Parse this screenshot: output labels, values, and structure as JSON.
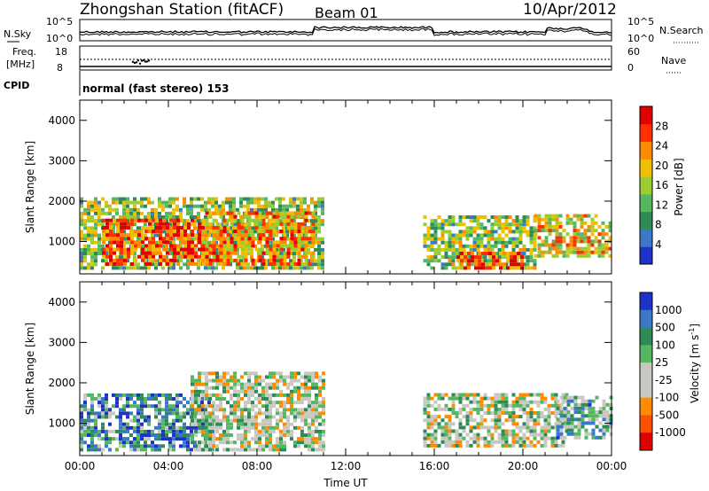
{
  "header": {
    "title": "Zhongshan Station (fitACF)",
    "beam": "Beam 01",
    "date": "10/Apr/2012"
  },
  "noise_panel": {
    "left_label": "N.Sky",
    "right_label": "N.Search",
    "left_ticks": [
      "10^5",
      "10^0"
    ],
    "right_ticks": [
      "10^5",
      "10^0"
    ]
  },
  "freq_panel": {
    "left_label_1": "Freq.",
    "left_label_2": "[MHz]",
    "left_ticks": [
      "18",
      "8"
    ],
    "right_label": "Nave",
    "right_ticks": [
      "60",
      "0"
    ]
  },
  "cpid": {
    "label": "CPID",
    "text": "normal (fast stereo) 153"
  },
  "colors": {
    "power": [
      "#1e32c8",
      "#3c78c8",
      "#2e8b57",
      "#55b860",
      "#9acd32",
      "#f0c000",
      "#ff8c00",
      "#ff3000",
      "#e00000"
    ],
    "velocity": [
      "#1e32c8",
      "#3c78c8",
      "#2e8b57",
      "#55b860",
      "#c8c8c0",
      "#c8c8c0",
      "#ff8c00",
      "#ff5000",
      "#e00000"
    ]
  },
  "chart_data": [
    {
      "type": "heatmap",
      "panel": "power",
      "ylabel": "Slant Range [km]",
      "ylim": [
        200,
        4500
      ],
      "yticks": [
        "1000",
        "2000",
        "3000",
        "4000"
      ],
      "xlim": [
        0,
        24
      ],
      "colorbar_label": "Power [dB]",
      "colorbar_ticks": [
        "4",
        "8",
        "12",
        "16",
        "20",
        "24",
        "28"
      ],
      "colorbar_range": [
        0,
        32
      ],
      "segments": [
        {
          "t0": 0.0,
          "t1": 11.0,
          "r0": 300,
          "r1": 2100,
          "level": 0.45
        },
        {
          "t0": 1.0,
          "t1": 5.5,
          "r0": 400,
          "r1": 1500,
          "level": 0.85
        },
        {
          "t0": 5.5,
          "t1": 10.5,
          "r0": 400,
          "r1": 1700,
          "level": 0.7
        },
        {
          "t0": 15.5,
          "t1": 20.5,
          "r0": 300,
          "r1": 1600,
          "level": 0.45
        },
        {
          "t0": 20.5,
          "t1": 24.0,
          "r0": 600,
          "r1": 1600,
          "level": 0.6
        },
        {
          "t0": 17.0,
          "t1": 20.0,
          "r0": 300,
          "r1": 700,
          "level": 0.8
        }
      ]
    },
    {
      "type": "heatmap",
      "panel": "velocity",
      "xlabel": "Time UT",
      "ylabel": "Slant Range [km]",
      "ylim": [
        200,
        4500
      ],
      "yticks": [
        "1000",
        "2000",
        "3000",
        "4000"
      ],
      "xlim": [
        0,
        24
      ],
      "xticks": [
        "00:00",
        "04:00",
        "08:00",
        "12:00",
        "16:00",
        "20:00",
        "00:00"
      ],
      "colorbar_label": "Velocity [m s",
      "colorbar_label_sup": "-1",
      "colorbar_label_end": "]",
      "colorbar_ticks": [
        "1000",
        "500",
        "100",
        "25",
        "-25",
        "-100",
        "-500",
        "-1000"
      ],
      "segments": [
        {
          "t0": 0.0,
          "t1": 6.0,
          "r0": 300,
          "r1": 1700,
          "level": 0.25
        },
        {
          "t0": 5.0,
          "t1": 11.0,
          "r0": 300,
          "r1": 2200,
          "level": 0.5
        },
        {
          "t0": 15.5,
          "t1": 22.0,
          "r0": 400,
          "r1": 1700,
          "level": 0.5
        },
        {
          "t0": 21.5,
          "t1": 24.0,
          "r0": 600,
          "r1": 1600,
          "level": 0.35
        }
      ]
    }
  ]
}
